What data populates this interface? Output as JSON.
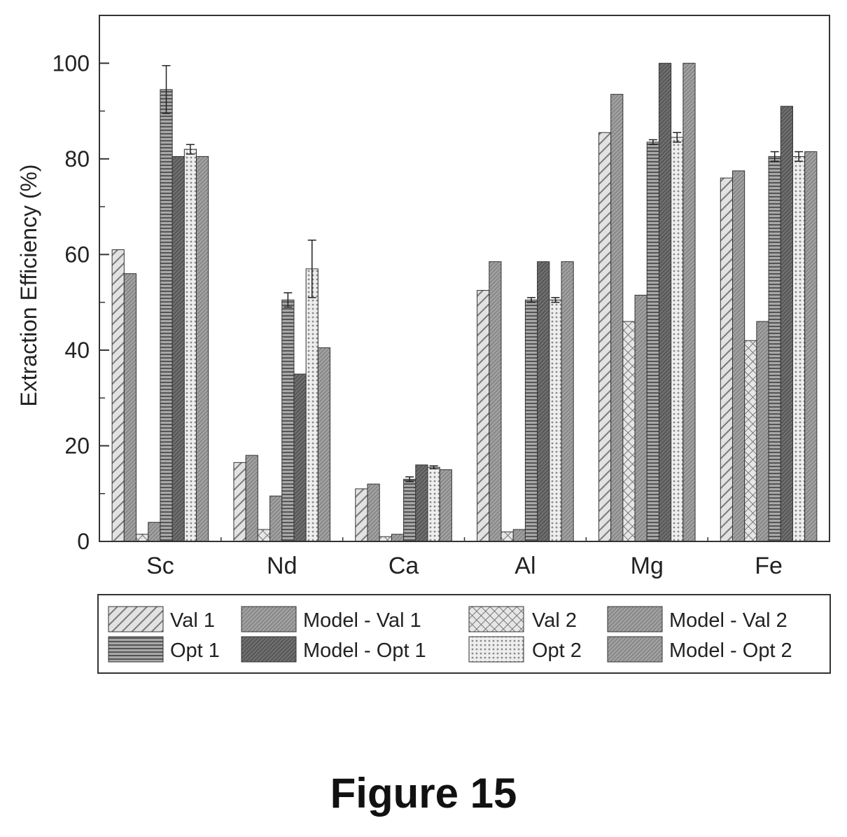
{
  "caption": "Figure 15",
  "chart_data": {
    "type": "bar",
    "ylabel": "Extraction Efficiency (%)",
    "xlabel": "",
    "ylim": [
      0,
      110
    ],
    "yticks": [
      0,
      20,
      40,
      60,
      80,
      100
    ],
    "categories": [
      "Sc",
      "Nd",
      "Ca",
      "Al",
      "Mg",
      "Fe"
    ],
    "legend_position": "bottom",
    "series": [
      {
        "name": "Val 1",
        "pattern": "diag",
        "color": "#bdbdbd",
        "values": [
          61,
          16.5,
          11,
          52.5,
          85.5,
          76
        ]
      },
      {
        "name": "Model - Val 1",
        "pattern": "fine",
        "color": "#9a9a9a",
        "values": [
          56,
          18,
          12,
          58.5,
          93.5,
          77.5
        ]
      },
      {
        "name": "Val 2",
        "pattern": "cross",
        "color": "#c4c4c4",
        "values": [
          1.5,
          2.5,
          1,
          2,
          46,
          42
        ]
      },
      {
        "name": "Model - Val 2",
        "pattern": "fine",
        "color": "#8a8a8a",
        "values": [
          4,
          9.5,
          1.5,
          2.5,
          51.5,
          46
        ]
      },
      {
        "name": "Opt 1",
        "pattern": "horiz",
        "color": "#888888",
        "values": [
          94.5,
          50.5,
          13,
          50.5,
          83.5,
          80.5
        ],
        "errors": [
          5,
          1.5,
          0.5,
          0.5,
          0.5,
          1
        ]
      },
      {
        "name": "Model - Opt 1",
        "pattern": "fine",
        "color": "#5e5e5e",
        "values": [
          80.5,
          35,
          16,
          58.5,
          100,
          91
        ]
      },
      {
        "name": "Opt 2",
        "pattern": "dots",
        "color": "#d4d4d4",
        "values": [
          82,
          57,
          15.5,
          50.5,
          84.5,
          80.5
        ],
        "errors": [
          1,
          6,
          0.3,
          0.5,
          1,
          1
        ]
      },
      {
        "name": "Model - Opt 2",
        "pattern": "fine",
        "color": "#8f8f8f",
        "values": [
          80.5,
          40.5,
          15,
          58.5,
          100,
          81.5
        ]
      }
    ]
  }
}
